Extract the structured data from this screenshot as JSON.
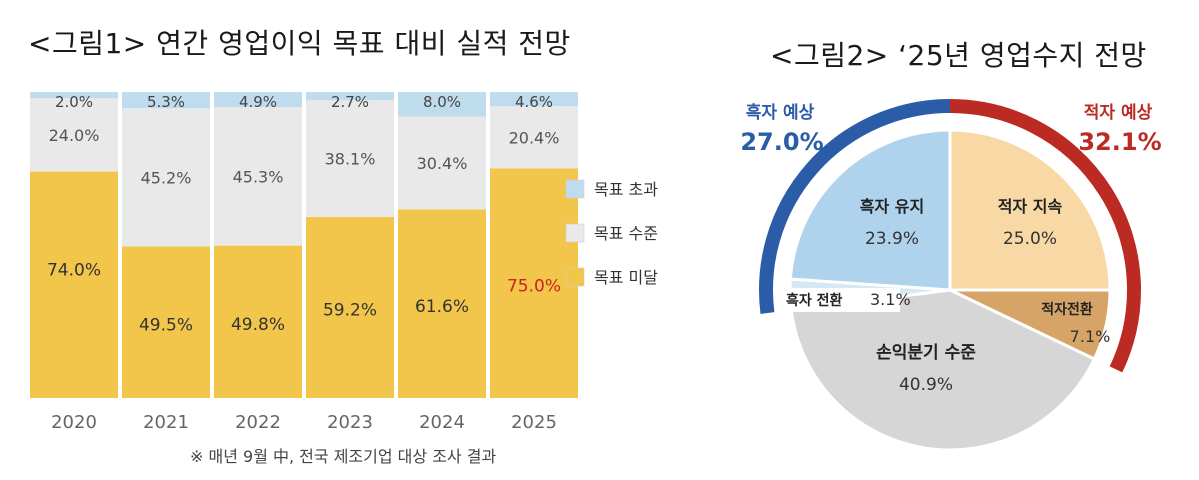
{
  "figure1": {
    "title": "<그림1> 연간 영업이익 목표 대비 실적 전망",
    "note": "※ 매년 9월 中, 전국 제조기업 대상 조사 결과"
  },
  "figure2": {
    "title": "<그림2> ‘25년 영업수지 전망"
  },
  "colors": {
    "exceed": "#bfdcef",
    "meet": "#e9e9e9",
    "miss": "#f2c64b",
    "highlight_red": "#cc2222",
    "surplus_arc": "#2a5ca8",
    "deficit_arc": "#bb2a23",
    "surplus_keep": "#afd3ec",
    "deficit_keep": "#f8d9a6",
    "deficit_turn": "#d7a468",
    "surplus_turn": "#d5e8f6",
    "breakeven": "#d6d6d6"
  },
  "chart_data": [
    {
      "type": "bar",
      "stacked": true,
      "categories": [
        "2020",
        "2021",
        "2022",
        "2023",
        "2024",
        "2025"
      ],
      "series": [
        {
          "name": "목표 미달",
          "values": [
            74.0,
            49.5,
            49.8,
            59.2,
            61.6,
            75.0
          ],
          "labels": [
            "74.0%",
            "49.5%",
            "49.8%",
            "59.2%",
            "61.6%",
            "75.0%"
          ]
        },
        {
          "name": "목표 수준",
          "values": [
            24.0,
            45.2,
            45.3,
            38.1,
            30.4,
            20.4
          ],
          "labels": [
            "24.0%",
            "45.2%",
            "45.3%",
            "38.1%",
            "30.4%",
            "20.4%"
          ]
        },
        {
          "name": "목표 초과",
          "values": [
            2.0,
            5.3,
            4.9,
            2.7,
            8.0,
            4.6
          ],
          "labels": [
            "2.0%",
            "5.3%",
            "4.9%",
            "2.7%",
            "8.0%",
            "4.6%"
          ]
        }
      ],
      "ylim": [
        0,
        100
      ],
      "legend": [
        "목표 초과",
        "목표 수준",
        "목표 미달"
      ],
      "legend_position": "right",
      "grid": false
    },
    {
      "type": "pie",
      "slices": [
        {
          "name": "흑자 유지",
          "value": 23.9,
          "label": "23.9%"
        },
        {
          "name": "흑자 전환",
          "value": 3.1,
          "label": "3.1%"
        },
        {
          "name": "손익분기 수준",
          "value": 40.9,
          "label": "40.9%"
        },
        {
          "name": "적자전환",
          "value": 7.1,
          "label": "7.1%"
        },
        {
          "name": "적자 지속",
          "value": 25.0,
          "label": "25.0%"
        }
      ],
      "groups": [
        {
          "name": "흑자 예상",
          "value": 27.0,
          "label": "27.0%"
        },
        {
          "name": "적자 예상",
          "value": 32.1,
          "label": "32.1%"
        }
      ]
    }
  ]
}
